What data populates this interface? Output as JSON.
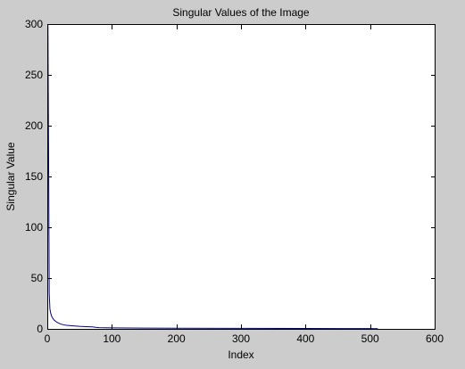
{
  "figure": {
    "background": "#cccccc",
    "plot_background": "#ffffff",
    "line_color": "#00008b"
  },
  "chart_data": {
    "type": "line",
    "title": "Singular Values of the Image",
    "xlabel": "Index",
    "ylabel": "Singular Value",
    "xlim": [
      0,
      600
    ],
    "ylim": [
      0,
      300
    ],
    "xticks": [
      0,
      100,
      200,
      300,
      400,
      500,
      600
    ],
    "yticks": [
      0,
      50,
      100,
      150,
      200,
      250,
      300
    ],
    "grid": false,
    "legend": "none",
    "series": [
      {
        "x": [
          1,
          2,
          3,
          4,
          5,
          6,
          7,
          8,
          10,
          12,
          15,
          20,
          25,
          30,
          40,
          50,
          60,
          70,
          75,
          80,
          100,
          150,
          200,
          300,
          400,
          500,
          512
        ],
        "y": [
          300,
          172,
          35,
          20,
          16,
          14,
          12,
          11,
          9,
          8,
          6.5,
          5,
          4,
          3.5,
          3,
          2.5,
          2.2,
          2,
          1.5,
          1.2,
          1,
          0.8,
          0.7,
          0.5,
          0.4,
          0.3,
          0.2
        ]
      }
    ]
  }
}
